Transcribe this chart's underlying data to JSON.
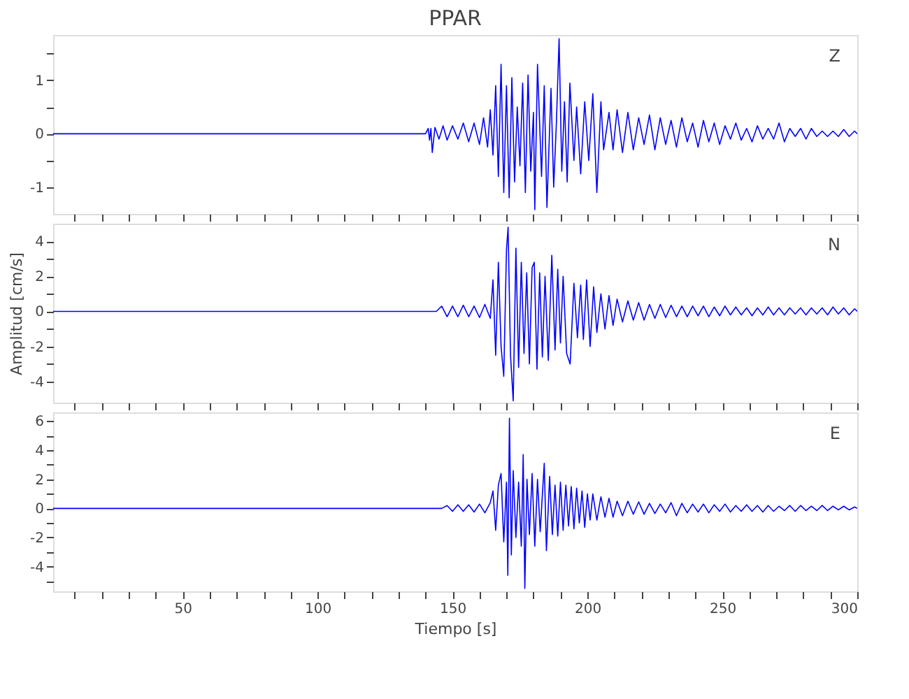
{
  "chart_data": [
    {
      "type": "line",
      "title": "PPAR",
      "annotations": [
        "Z"
      ],
      "tick_labels": "y",
      "grid": false,
      "xlim": [
        2,
        300
      ],
      "xticks": [
        {
          "value": 10,
          "label": null
        },
        {
          "value": 20,
          "label": null
        },
        {
          "value": 30,
          "label": null
        },
        {
          "value": 40,
          "label": null
        },
        {
          "value": 50,
          "label": null
        },
        {
          "value": 60,
          "label": null
        },
        {
          "value": 70,
          "label": null
        },
        {
          "value": 80,
          "label": null
        },
        {
          "value": 90,
          "label": null
        },
        {
          "value": 100,
          "label": null
        },
        {
          "value": 110,
          "label": null
        },
        {
          "value": 120,
          "label": null
        },
        {
          "value": 130,
          "label": null
        },
        {
          "value": 140,
          "label": null
        },
        {
          "value": 150,
          "label": null
        },
        {
          "value": 160,
          "label": null
        },
        {
          "value": 170,
          "label": null
        },
        {
          "value": 180,
          "label": null
        },
        {
          "value": 190,
          "label": null
        },
        {
          "value": 200,
          "label": null
        },
        {
          "value": 210,
          "label": null
        },
        {
          "value": 220,
          "label": null
        },
        {
          "value": 230,
          "label": null
        },
        {
          "value": 240,
          "label": null
        },
        {
          "value": 250,
          "label": null
        },
        {
          "value": 260,
          "label": null
        },
        {
          "value": 270,
          "label": null
        },
        {
          "value": 280,
          "label": null
        },
        {
          "value": 290,
          "label": null
        },
        {
          "value": 300,
          "label": null
        }
      ],
      "ylim": [
        -1.5,
        1.85
      ],
      "yticks": [
        -1,
        {
          "value": -0.5,
          "label": null
        },
        0,
        {
          "value": 0.5,
          "label": null
        },
        1,
        {
          "value": 1.5,
          "label": null
        }
      ],
      "series": [
        {
          "color": "#0000ff",
          "x": [
            2,
            140,
            141,
            141.5,
            142,
            142.5,
            143.5,
            145,
            146.5,
            148,
            150,
            152,
            154,
            156,
            158,
            160,
            161.5,
            163,
            164,
            165,
            166,
            167,
            168,
            169,
            170,
            171,
            172,
            173,
            174,
            175,
            176,
            177,
            178,
            179,
            180,
            180.5,
            181.5,
            183,
            184,
            185,
            186.5,
            187.5,
            188.5,
            189.5,
            190.5,
            191.5,
            192.5,
            193.5,
            195,
            196,
            197.5,
            199,
            200.5,
            202,
            203.5,
            205,
            206,
            208,
            209.5,
            211,
            213,
            215,
            217,
            219,
            221,
            223,
            225,
            227,
            229,
            231,
            233,
            235,
            237,
            239,
            241,
            243,
            245,
            247,
            249,
            251,
            253,
            255,
            257,
            259,
            261,
            263,
            265,
            267,
            269,
            271,
            273,
            275,
            277,
            279,
            281,
            283,
            285,
            287,
            289,
            291,
            293,
            295,
            297,
            299,
            300
          ],
          "values": [
            0,
            0,
            0.1,
            -0.12,
            0.1,
            -0.35,
            0.12,
            -0.1,
            0.15,
            -0.12,
            0.15,
            -0.1,
            0.2,
            -0.15,
            0.2,
            -0.2,
            0.3,
            -0.25,
            0.45,
            -0.4,
            0.9,
            -0.8,
            1.3,
            -1.1,
            0.9,
            -1.2,
            1.05,
            -0.9,
            0.5,
            -0.6,
            0.95,
            -1.1,
            1.1,
            -0.7,
            0.4,
            -1.42,
            1.3,
            -0.8,
            0.9,
            -1.38,
            0.85,
            -1.0,
            0.2,
            1.78,
            -0.7,
            0.6,
            -0.9,
            0.95,
            -0.5,
            0.5,
            -0.75,
            0.6,
            -0.5,
            0.75,
            -1.1,
            0.6,
            -0.3,
            0.4,
            -0.3,
            0.45,
            -0.35,
            0.4,
            -0.3,
            0.3,
            -0.2,
            0.35,
            -0.3,
            0.3,
            -0.2,
            0.25,
            -0.25,
            0.3,
            -0.15,
            0.2,
            -0.25,
            0.25,
            -0.15,
            0.2,
            -0.2,
            0.15,
            -0.1,
            0.2,
            -0.12,
            0.1,
            -0.15,
            0.15,
            -0.1,
            0.1,
            -0.1,
            0.2,
            -0.15,
            0.1,
            -0.05,
            0.1,
            -0.1,
            0.1,
            -0.05,
            0.05,
            -0.05,
            0.05,
            -0.05,
            0.08,
            -0.05,
            0.05,
            0
          ]
        }
      ]
    },
    {
      "type": "line",
      "ylabel": "Amplitud [cm/s]",
      "annotations": [
        "N"
      ],
      "tick_labels": "y",
      "grid": false,
      "xlim": [
        2,
        300
      ],
      "xticks": [
        {
          "value": 10,
          "label": null
        },
        {
          "value": 20,
          "label": null
        },
        {
          "value": 30,
          "label": null
        },
        {
          "value": 40,
          "label": null
        },
        {
          "value": 50,
          "label": null
        },
        {
          "value": 60,
          "label": null
        },
        {
          "value": 70,
          "label": null
        },
        {
          "value": 80,
          "label": null
        },
        {
          "value": 90,
          "label": null
        },
        {
          "value": 100,
          "label": null
        },
        {
          "value": 110,
          "label": null
        },
        {
          "value": 120,
          "label": null
        },
        {
          "value": 130,
          "label": null
        },
        {
          "value": 140,
          "label": null
        },
        {
          "value": 150,
          "label": null
        },
        {
          "value": 160,
          "label": null
        },
        {
          "value": 170,
          "label": null
        },
        {
          "value": 180,
          "label": null
        },
        {
          "value": 190,
          "label": null
        },
        {
          "value": 200,
          "label": null
        },
        {
          "value": 210,
          "label": null
        },
        {
          "value": 220,
          "label": null
        },
        {
          "value": 230,
          "label": null
        },
        {
          "value": 240,
          "label": null
        },
        {
          "value": 250,
          "label": null
        },
        {
          "value": 260,
          "label": null
        },
        {
          "value": 270,
          "label": null
        },
        {
          "value": 280,
          "label": null
        },
        {
          "value": 290,
          "label": null
        },
        {
          "value": 300,
          "label": null
        }
      ],
      "ylim": [
        -5.2,
        5
      ],
      "yticks": [
        -4,
        {
          "value": -3,
          "label": null
        },
        -2,
        {
          "value": -1,
          "label": null
        },
        0,
        {
          "value": 1,
          "label": null
        },
        2,
        {
          "value": 3,
          "label": null
        },
        4
      ],
      "series": [
        {
          "color": "#0000ff",
          "x": [
            2,
            144,
            146,
            148,
            150,
            152,
            154,
            156,
            158,
            160,
            162,
            164,
            165,
            166,
            167,
            168,
            169,
            170,
            170.6,
            171.5,
            172.5,
            173.5,
            174.5,
            175.5,
            176.5,
            177.5,
            178.5,
            179.5,
            180.3,
            181.3,
            182.3,
            183.3,
            184.3,
            185.5,
            186.8,
            188,
            189,
            190,
            191,
            192.3,
            193.6,
            195,
            196.3,
            197.5,
            198.5,
            199.7,
            201,
            202.3,
            203.5,
            205,
            206.5,
            208,
            209.5,
            211,
            213,
            215,
            217,
            219,
            221,
            223,
            225,
            227,
            229,
            231,
            233,
            235,
            237,
            239,
            241,
            243,
            245,
            247,
            249,
            251,
            253,
            255,
            257,
            259,
            261,
            263,
            265,
            267,
            269,
            271,
            273,
            275,
            277,
            279,
            281,
            283,
            285,
            287,
            289,
            291,
            293,
            295,
            297,
            299,
            300
          ],
          "values": [
            0,
            0,
            0.3,
            -0.3,
            0.3,
            -0.3,
            0.35,
            -0.3,
            0.3,
            -0.35,
            0.4,
            -0.4,
            1.8,
            -2.5,
            2.8,
            -2.0,
            -3.7,
            3.5,
            4.8,
            -2.5,
            -5.1,
            3.6,
            -3.2,
            2.8,
            -2.4,
            2.2,
            -3.0,
            2.5,
            2.8,
            -3.3,
            2.2,
            -2.6,
            2.0,
            -2.8,
            3.2,
            -2.2,
            2.4,
            -1.8,
            2.0,
            -2.4,
            -3.0,
            1.6,
            -1.5,
            1.5,
            -1.6,
            1.8,
            -2.0,
            1.4,
            -1.2,
            1.0,
            -1.0,
            0.9,
            -0.8,
            0.7,
            -0.6,
            0.6,
            -0.5,
            0.5,
            -0.5,
            0.4,
            -0.4,
            0.4,
            -0.35,
            0.35,
            -0.3,
            0.3,
            -0.3,
            0.3,
            -0.25,
            0.3,
            -0.3,
            0.25,
            -0.25,
            0.3,
            -0.2,
            0.25,
            -0.2,
            0.2,
            -0.25,
            0.2,
            -0.2,
            0.25,
            -0.2,
            0.2,
            -0.2,
            0.2,
            -0.15,
            0.2,
            -0.2,
            0.2,
            -0.15,
            0.2,
            -0.2,
            0.25,
            -0.15,
            0.2,
            -0.2,
            0.15,
            0
          ]
        }
      ]
    },
    {
      "type": "line",
      "xlabel": "Tiempo [s]",
      "annotations": [
        "E"
      ],
      "grid": false,
      "xlim": [
        2,
        300
      ],
      "xticks": [
        {
          "value": 10,
          "label": null
        },
        {
          "value": 20,
          "label": null
        },
        {
          "value": 30,
          "label": null
        },
        {
          "value": 40,
          "label": null
        },
        50,
        {
          "value": 60,
          "label": null
        },
        {
          "value": 70,
          "label": null
        },
        {
          "value": 80,
          "label": null
        },
        {
          "value": 90,
          "label": null
        },
        100,
        {
          "value": 110,
          "label": null
        },
        {
          "value": 120,
          "label": null
        },
        {
          "value": 130,
          "label": null
        },
        {
          "value": 140,
          "label": null
        },
        150,
        {
          "value": 160,
          "label": null
        },
        {
          "value": 170,
          "label": null
        },
        {
          "value": 180,
          "label": null
        },
        {
          "value": 190,
          "label": null
        },
        200,
        {
          "value": 210,
          "label": null
        },
        {
          "value": 220,
          "label": null
        },
        {
          "value": 230,
          "label": null
        },
        {
          "value": 240,
          "label": null
        },
        250,
        {
          "value": 260,
          "label": null
        },
        {
          "value": 270,
          "label": null
        },
        {
          "value": 280,
          "label": null
        },
        {
          "value": 290,
          "label": null
        },
        300
      ],
      "ylim": [
        -5.7,
        6.6
      ],
      "yticks": [
        {
          "value": -5,
          "label": null
        },
        -4,
        {
          "value": -3,
          "label": null
        },
        -2,
        {
          "value": -1,
          "label": null
        },
        0,
        {
          "value": 1,
          "label": null
        },
        2,
        {
          "value": 3,
          "label": null
        },
        4,
        {
          "value": 5,
          "label": null
        },
        6
      ],
      "series": [
        {
          "color": "#0000ff",
          "x": [
            2,
            146,
            148,
            150,
            152,
            154,
            156,
            158,
            160,
            162,
            164,
            165,
            166,
            167,
            168,
            169,
            170,
            170.5,
            171.1,
            171.8,
            172.5,
            173.5,
            174.5,
            175.5,
            176.2,
            176.8,
            177.6,
            178.5,
            179.5,
            180.5,
            181.5,
            182.5,
            184,
            184.8,
            186,
            187,
            188,
            189,
            190,
            191,
            192,
            193,
            194,
            195,
            196,
            197,
            198,
            199,
            200,
            201,
            202,
            203.5,
            205,
            206.5,
            208,
            209.5,
            211,
            213,
            215,
            217,
            219,
            221,
            223,
            225,
            227,
            229,
            231,
            233,
            235,
            237,
            239,
            241,
            243,
            245,
            247,
            249,
            251,
            253,
            255,
            257,
            259,
            261,
            263,
            265,
            267,
            269,
            271,
            273,
            275,
            277,
            279,
            281,
            283,
            285,
            287,
            289,
            291,
            293,
            295,
            297,
            299,
            300
          ],
          "values": [
            0,
            0,
            0.2,
            -0.2,
            0.25,
            -0.2,
            0.25,
            -0.25,
            0.3,
            -0.3,
            0.4,
            1.2,
            -1.5,
            1.6,
            2.4,
            -2.3,
            1.8,
            -4.6,
            6.2,
            -3.2,
            2.6,
            -2.0,
            1.8,
            -2.6,
            3.7,
            -5.5,
            2.0,
            -1.8,
            2.4,
            -2.6,
            2.0,
            -1.6,
            3.1,
            -2.9,
            2.2,
            -1.8,
            1.6,
            -1.9,
            1.8,
            -1.5,
            1.6,
            -1.2,
            1.5,
            -1.4,
            1.4,
            -1.0,
            1.2,
            -1.3,
            1.0,
            -0.8,
            1.0,
            -0.8,
            0.8,
            -0.6,
            0.7,
            -0.6,
            0.5,
            -0.5,
            0.5,
            -0.4,
            0.45,
            -0.4,
            0.35,
            -0.35,
            0.3,
            -0.3,
            0.4,
            -0.5,
            0.35,
            -0.3,
            0.3,
            -0.25,
            0.3,
            -0.3,
            0.25,
            -0.2,
            0.3,
            -0.25,
            0.2,
            -0.2,
            0.25,
            -0.2,
            0.2,
            -0.25,
            0.2,
            -0.2,
            0.15,
            -0.15,
            0.2,
            -0.2,
            0.2,
            -0.15,
            0.15,
            -0.15,
            0.2,
            -0.15,
            0.15,
            -0.1,
            0.15,
            -0.1,
            0.1,
            0
          ]
        }
      ]
    }
  ]
}
